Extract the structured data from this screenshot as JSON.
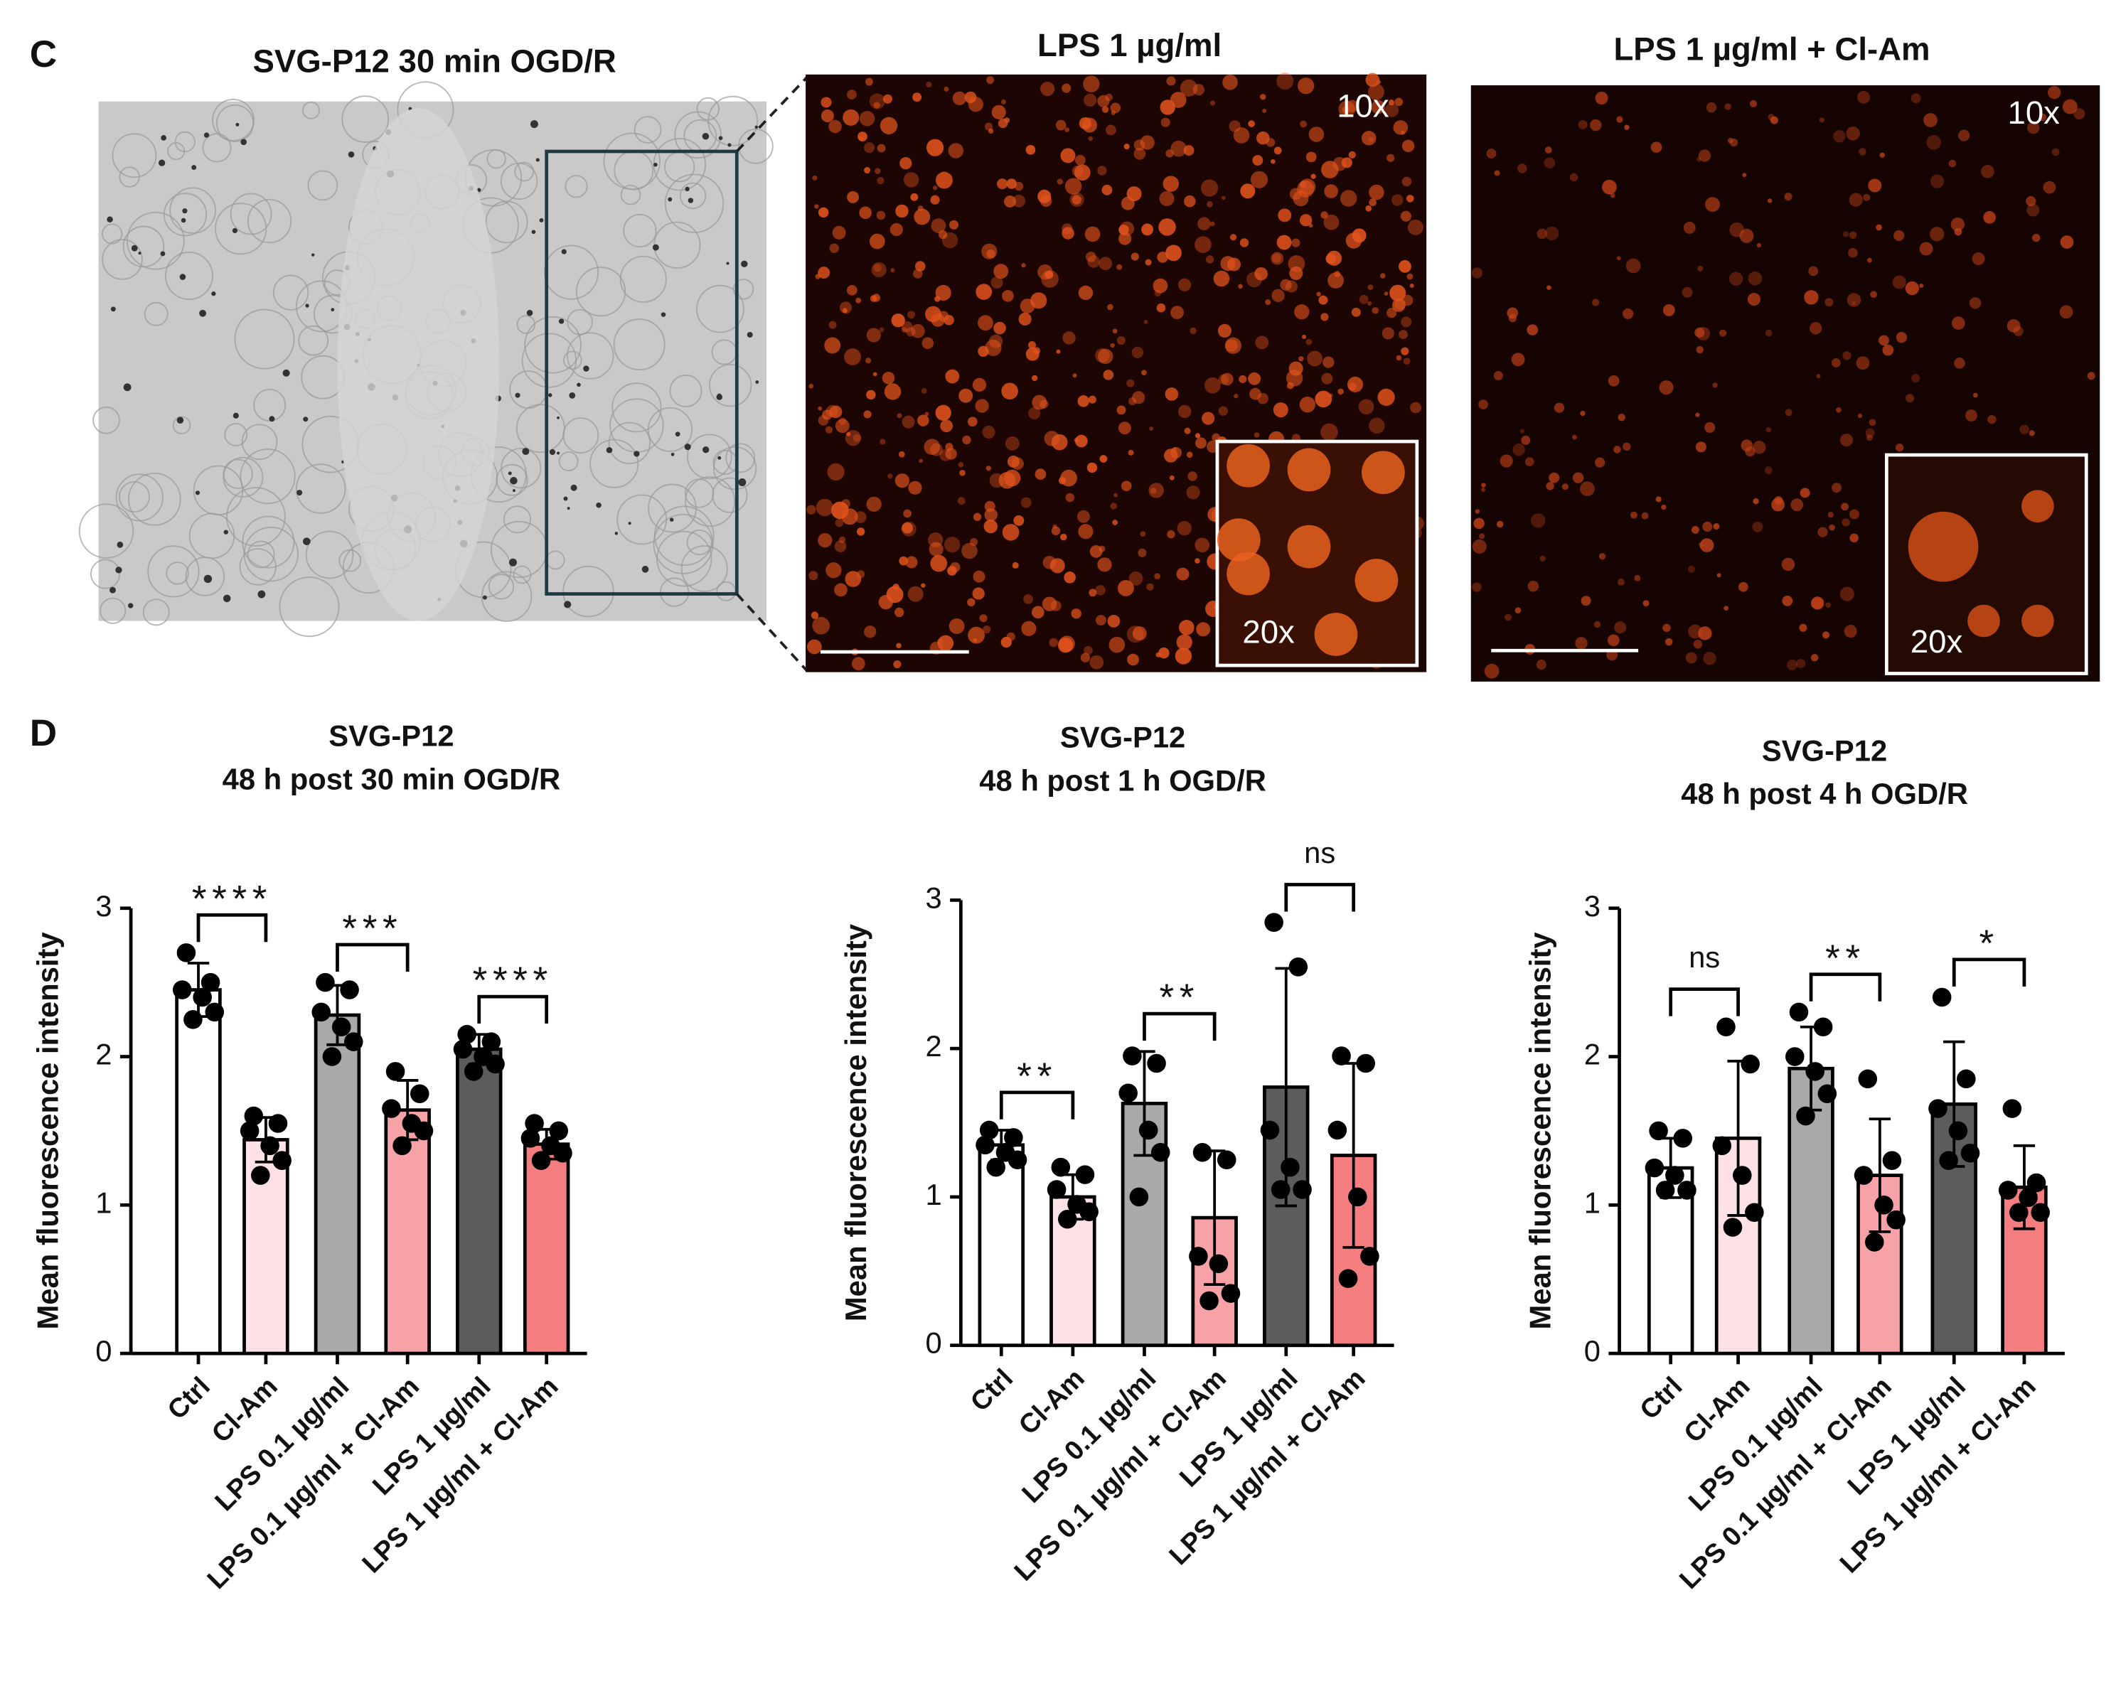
{
  "panel_c": {
    "label": "C",
    "images": [
      {
        "title": "SVG-P12 30 min OGD/R"
      },
      {
        "title": "LPS 1 µg/ml",
        "magnification": "10x",
        "inset_magnification": "20x"
      },
      {
        "title": "LPS 1 µg/ml + Cl-Am",
        "magnification": "10x",
        "inset_magnification": "20x"
      }
    ]
  },
  "panel_d_label": "D",
  "chart_data": [
    {
      "type": "bar",
      "title": "SVG-P12",
      "subtitle": "48 h post 30 min OGD/R",
      "y_label": "Mean fluorescence intensity",
      "categories": [
        "Ctrl",
        "Cl-Am",
        "LPS 0.1 µg/ml",
        "LPS 0.1 µg/ml + Cl-Am",
        "LPS 1 µg/ml",
        "LPS 1 µg/ml + Cl-Am"
      ],
      "values": [
        2.45,
        1.44,
        2.28,
        1.64,
        2.05,
        1.41
      ],
      "errors": [
        0.18,
        0.15,
        0.2,
        0.2,
        0.1,
        0.1
      ],
      "points": [
        [
          2.7,
          2.5,
          2.45,
          2.4,
          2.3,
          2.25
        ],
        [
          1.6,
          1.55,
          1.5,
          1.4,
          1.3,
          1.2
        ],
        [
          2.5,
          2.45,
          2.3,
          2.2,
          2.1,
          2.0
        ],
        [
          1.9,
          1.75,
          1.65,
          1.55,
          1.5,
          1.4
        ],
        [
          2.15,
          2.1,
          2.05,
          2.0,
          1.95,
          1.9
        ],
        [
          1.55,
          1.5,
          1.45,
          1.4,
          1.35,
          1.3
        ]
      ],
      "colors": [
        "#ffffff",
        "#fde1e4",
        "#a9a9ab",
        "#f6a2a6",
        "#5c5c5c",
        "#f47d80"
      ],
      "ylim": [
        0,
        3
      ],
      "yticks": [
        0,
        1,
        2,
        3
      ],
      "annotations": [
        "****",
        "***",
        "****"
      ]
    },
    {
      "type": "bar",
      "title": "SVG-P12",
      "subtitle": "48 h post 1 h OGD/R",
      "y_label": "Mean fluorescence intensity",
      "categories": [
        "Ctrl",
        "Cl-Am",
        "LPS 0.1 µg/ml",
        "LPS 0.1 µg/ml + Cl-Am",
        "LPS 1 µg/ml",
        "LPS 1 µg/ml + Cl-Am"
      ],
      "values": [
        1.35,
        1.0,
        1.63,
        0.86,
        1.74,
        1.28
      ],
      "errors": [
        0.1,
        0.15,
        0.35,
        0.45,
        0.8,
        0.62
      ],
      "points": [
        [
          1.45,
          1.4,
          1.35,
          1.3,
          1.25,
          1.2
        ],
        [
          1.2,
          1.15,
          1.05,
          0.95,
          0.9,
          0.85
        ],
        [
          1.95,
          1.9,
          1.7,
          1.45,
          1.3,
          1.0
        ],
        [
          1.3,
          1.25,
          0.6,
          0.55,
          0.35,
          0.3
        ],
        [
          2.85,
          2.55,
          1.45,
          1.2,
          1.05,
          1.05
        ],
        [
          1.95,
          1.9,
          1.45,
          1.0,
          0.6,
          0.45
        ]
      ],
      "colors": [
        "#ffffff",
        "#fde1e4",
        "#a9a9ab",
        "#f6a2a6",
        "#5c5c5c",
        "#f47d80"
      ],
      "ylim": [
        0,
        3
      ],
      "yticks": [
        0,
        1,
        2,
        3
      ],
      "annotations": [
        "**",
        "**",
        "ns"
      ]
    },
    {
      "type": "bar",
      "title": "SVG-P12",
      "subtitle": "48 h post 4 h OGD/R",
      "y_label": "Mean fluorescence intensity",
      "categories": [
        "Ctrl",
        "Cl-Am",
        "LPS 0.1 µg/ml",
        "LPS 0.1 µg/ml + Cl-Am",
        "LPS 1 µg/ml",
        "LPS 1 µg/ml + Cl-Am"
      ],
      "values": [
        1.25,
        1.45,
        1.92,
        1.2,
        1.68,
        1.12
      ],
      "errors": [
        0.2,
        0.52,
        0.28,
        0.38,
        0.42,
        0.28
      ],
      "points": [
        [
          1.5,
          1.45,
          1.25,
          1.2,
          1.1,
          1.1
        ],
        [
          2.2,
          1.95,
          1.4,
          1.2,
          0.95,
          0.85
        ],
        [
          2.3,
          2.2,
          2.0,
          1.9,
          1.75,
          1.6
        ],
        [
          1.85,
          1.3,
          1.2,
          1.0,
          0.9,
          0.75
        ],
        [
          2.4,
          1.85,
          1.65,
          1.5,
          1.35,
          1.3
        ],
        [
          1.65,
          1.15,
          1.1,
          1.05,
          0.95,
          0.95
        ]
      ],
      "colors": [
        "#ffffff",
        "#fde1e4",
        "#a9a9ab",
        "#f6a2a6",
        "#5c5c5c",
        "#f47d80"
      ],
      "ylim": [
        0,
        3
      ],
      "yticks": [
        0,
        1,
        2,
        3
      ],
      "annotations": [
        "ns",
        "**",
        "*"
      ]
    }
  ]
}
